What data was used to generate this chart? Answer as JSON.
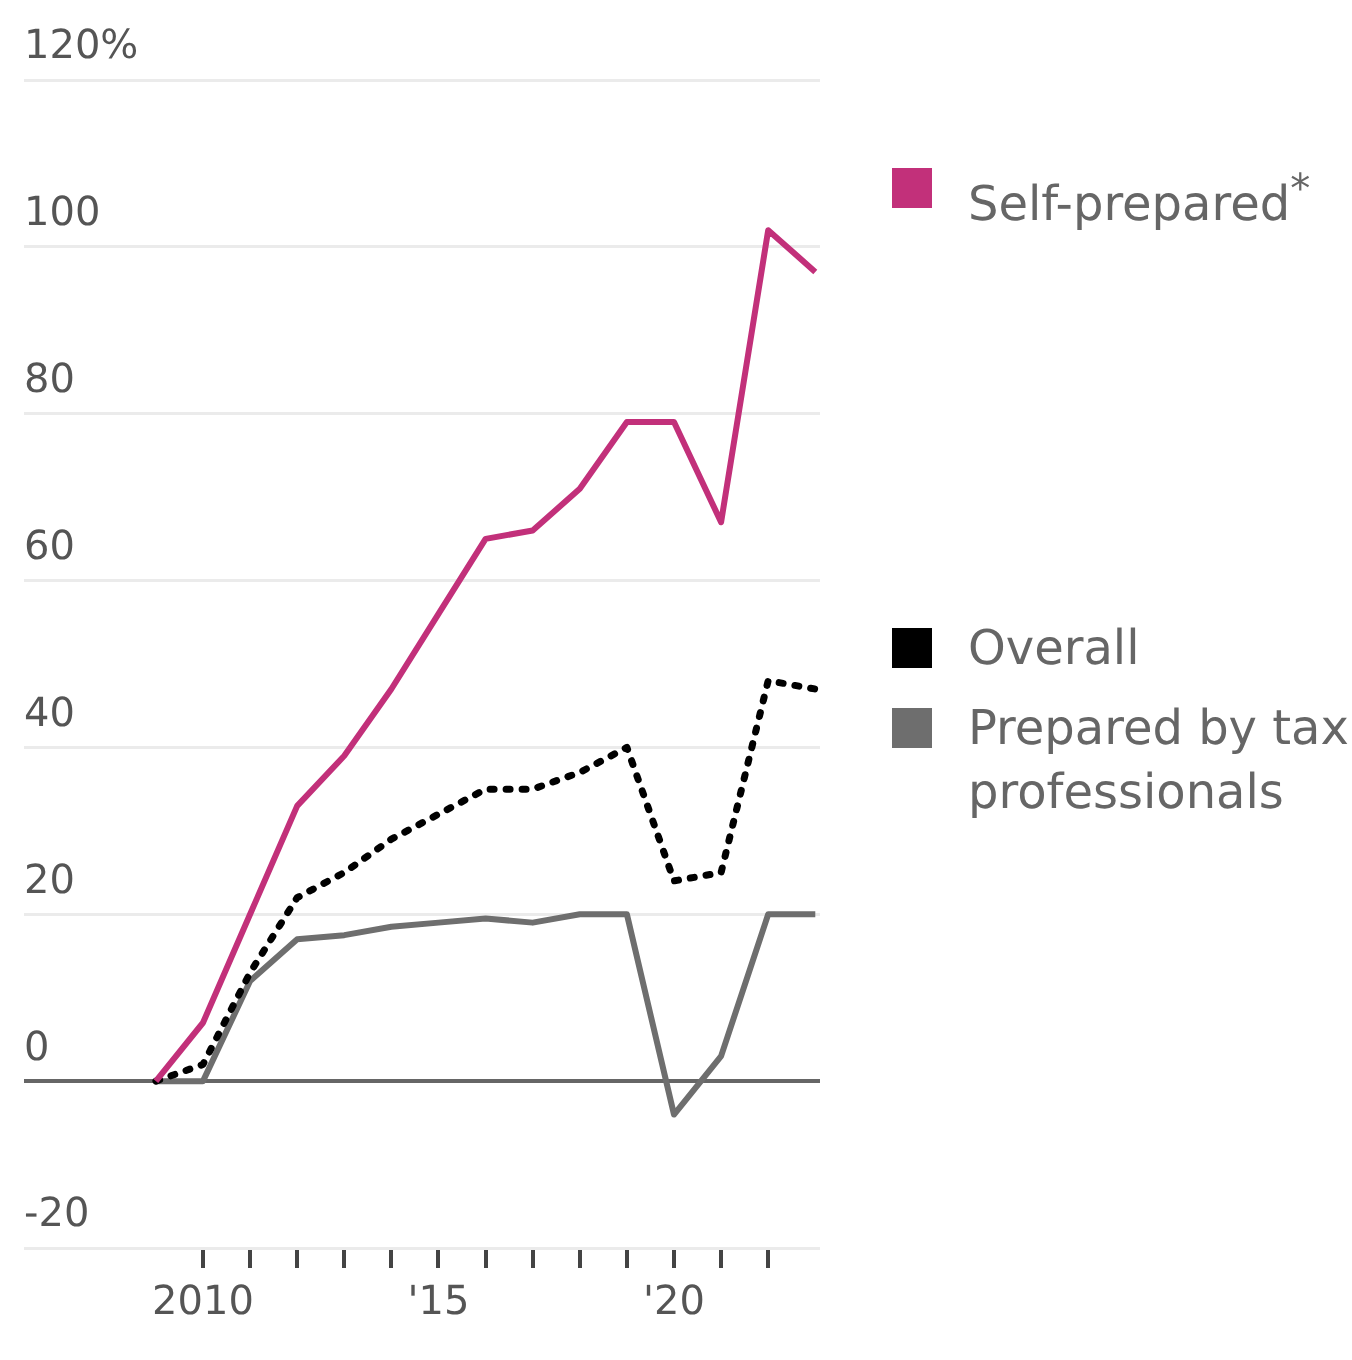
{
  "chart_data": {
    "type": "line",
    "x": [
      2009,
      2010,
      2011,
      2012,
      2013,
      2014,
      2015,
      2016,
      2017,
      2018,
      2019,
      2020,
      2021,
      2022,
      2023
    ],
    "series": [
      {
        "name": "Self-prepared$^{*}$",
        "color": "#c2307a",
        "line_style": "solid",
        "values": [
          0,
          7,
          20,
          33,
          39,
          47,
          56,
          65,
          66,
          71,
          79,
          79,
          67,
          102,
          97
        ]
      },
      {
        "name": "Overall",
        "color": "#000000",
        "line_style": "dotted",
        "values": [
          0,
          2,
          13,
          22,
          25,
          29,
          32,
          35,
          35,
          37,
          40,
          24,
          25,
          48,
          47
        ]
      },
      {
        "name": "Prepared by tax professionals",
        "color": "#6e6e6e",
        "line_style": "solid",
        "values": [
          0,
          0,
          12,
          17,
          17.5,
          18.5,
          19,
          19.5,
          19,
          20,
          20,
          -4,
          3,
          20,
          20
        ]
      }
    ],
    "xlim": [
      2006.2,
      2023.1
    ],
    "xticks": [
      {
        "value": 2010,
        "label": "2010"
      },
      {
        "value": 2011,
        "label": null
      },
      {
        "value": 2012,
        "label": null
      },
      {
        "value": 2013,
        "label": null
      },
      {
        "value": 2014,
        "label": null
      },
      {
        "value": 2015,
        "label": "'15"
      },
      {
        "value": 2016,
        "label": null
      },
      {
        "value": 2017,
        "label": null
      },
      {
        "value": 2018,
        "label": null
      },
      {
        "value": 2019,
        "label": null
      },
      {
        "value": 2020,
        "label": "'20"
      },
      {
        "value": 2021,
        "label": null
      },
      {
        "value": 2022,
        "label": null
      }
    ],
    "ylim": [
      -20,
      120
    ],
    "yticks": [
      -20,
      0,
      20,
      40,
      60,
      80,
      100,
      {
        "value": 120,
        "label": "120%"
      }
    ],
    "grid": "y",
    "legend": "right",
    "marker": "none"
  }
}
